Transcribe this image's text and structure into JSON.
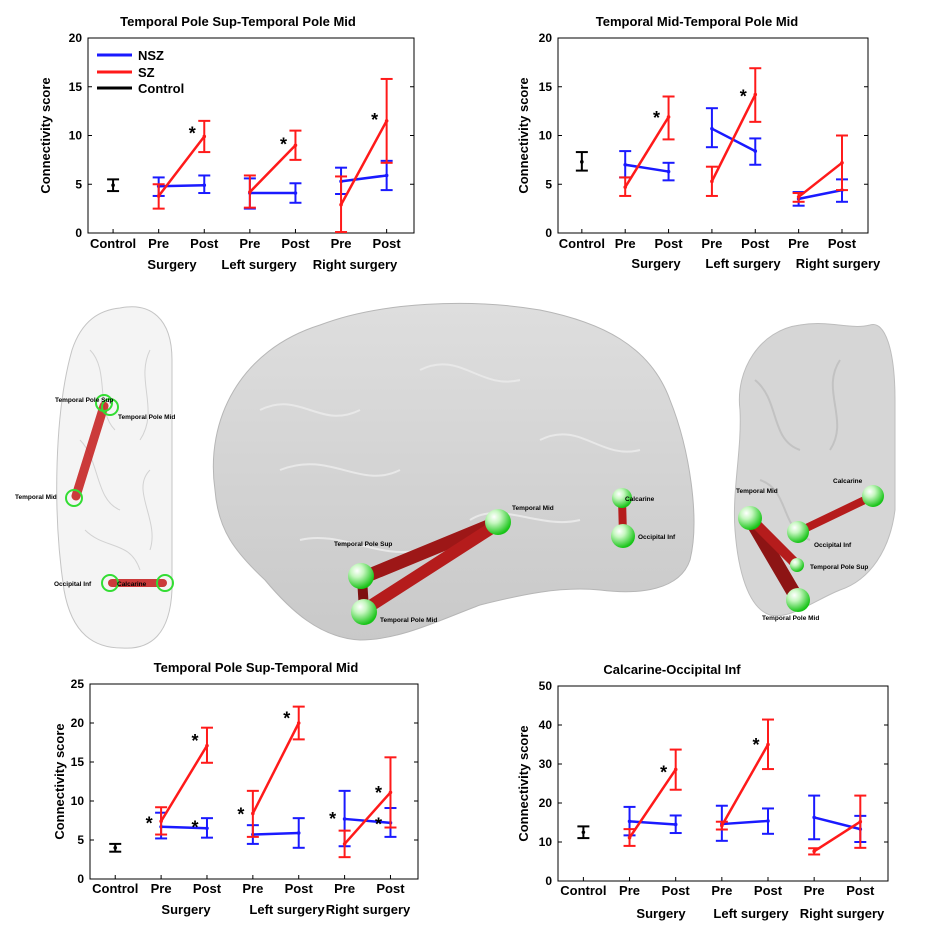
{
  "colors": {
    "nsz": "#1a1aff",
    "sz": "#ff1a1a",
    "control": "#000000",
    "node": "#22dd22",
    "edge": "#b01818"
  },
  "legend": {
    "nsz": "NSZ",
    "sz": "SZ",
    "control": "Control"
  },
  "chart_data": [
    {
      "type": "line",
      "title": "Temporal Pole Sup-Temporal Pole Mid",
      "ylabel": "Connectivity score",
      "ylim": [
        0,
        20
      ],
      "yticks": [
        "0",
        "5",
        "10",
        "15",
        "20"
      ],
      "ticks": [
        "Control",
        "Pre",
        "Post",
        "Pre",
        "Post",
        "Pre",
        "Post"
      ],
      "groups": [
        "Surgery",
        "Left surgery",
        "Right surgery"
      ],
      "control": {
        "mean": 4.9,
        "lo": 4.3,
        "hi": 5.5
      },
      "series": [
        {
          "name": "NSZ",
          "pairs": [
            {
              "pre": 4.8,
              "preLo": 3.8,
              "preHi": 5.7,
              "post": 4.9,
              "postLo": 4.1,
              "postHi": 5.9
            },
            {
              "pre": 4.1,
              "preLo": 2.5,
              "preHi": 5.6,
              "post": 4.1,
              "postLo": 3.1,
              "postHi": 5.1
            },
            {
              "pre": 5.3,
              "preLo": 4.0,
              "preHi": 6.7,
              "post": 5.9,
              "postLo": 4.4,
              "postHi": 7.4
            }
          ]
        },
        {
          "name": "SZ",
          "pairs": [
            {
              "pre": 3.8,
              "preLo": 2.5,
              "preHi": 5.0,
              "post": 9.9,
              "postLo": 8.3,
              "postHi": 11.5
            },
            {
              "pre": 4.2,
              "preLo": 2.6,
              "preHi": 5.9,
              "post": 9.0,
              "postLo": 7.5,
              "postHi": 10.5
            },
            {
              "pre": 2.9,
              "preLo": 0.1,
              "preHi": 5.8,
              "post": 11.5,
              "postLo": 7.2,
              "postHi": 15.8
            }
          ]
        }
      ],
      "stars": [
        {
          "pos": 2,
          "value": 10.2
        },
        {
          "pos": 4,
          "value": 9.1
        },
        {
          "pos": 6,
          "value": 11.6
        }
      ]
    },
    {
      "type": "line",
      "title": "Temporal Mid-Temporal Pole Mid",
      "ylabel": "Connectivity score",
      "ylim": [
        0,
        20
      ],
      "yticks": [
        "0",
        "5",
        "10",
        "15",
        "20"
      ],
      "ticks": [
        "Control",
        "Pre",
        "Post",
        "Pre",
        "Post",
        "Pre",
        "Post"
      ],
      "groups": [
        "Surgery",
        "Left surgery",
        "Right surgery"
      ],
      "control": {
        "mean": 7.3,
        "lo": 6.4,
        "hi": 8.3
      },
      "series": [
        {
          "name": "NSZ",
          "pairs": [
            {
              "pre": 7.0,
              "preLo": 5.7,
              "preHi": 8.4,
              "post": 6.3,
              "postLo": 5.4,
              "postHi": 7.2
            },
            {
              "pre": 10.7,
              "preLo": 8.8,
              "preHi": 12.8,
              "post": 8.4,
              "postLo": 7.0,
              "postHi": 9.7
            },
            {
              "pre": 3.5,
              "preLo": 2.8,
              "preHi": 4.2,
              "post": 4.4,
              "postLo": 3.2,
              "postHi": 5.5
            }
          ]
        },
        {
          "name": "SZ",
          "pairs": [
            {
              "pre": 4.7,
              "preLo": 3.8,
              "preHi": 5.7,
              "post": 11.9,
              "postLo": 9.6,
              "postHi": 14.0
            },
            {
              "pre": 5.3,
              "preLo": 3.8,
              "preHi": 6.8,
              "post": 14.2,
              "postLo": 11.4,
              "postHi": 16.9
            },
            {
              "pre": 3.7,
              "preLo": 3.2,
              "preHi": 4.1,
              "post": 7.2,
              "postLo": 4.4,
              "postHi": 10.0
            }
          ]
        }
      ],
      "stars": [
        {
          "pos": 2,
          "value": 11.8
        },
        {
          "pos": 4,
          "value": 14.0
        }
      ]
    },
    {
      "type": "line",
      "title": "Temporal Pole Sup-Temporal Mid",
      "ylabel": "Connectivity score",
      "ylim": [
        0,
        25
      ],
      "yticks": [
        "0",
        "5",
        "10",
        "15",
        "20",
        "25"
      ],
      "ticks": [
        "Control",
        "Pre",
        "Post",
        "Pre",
        "Post",
        "Pre",
        "Post"
      ],
      "groups": [
        "Surgery",
        "Left surgery",
        "Right surgery"
      ],
      "control": {
        "mean": 4.0,
        "lo": 3.5,
        "hi": 4.5
      },
      "series": [
        {
          "name": "NSZ",
          "pairs": [
            {
              "pre": 6.7,
              "preLo": 5.2,
              "preHi": 8.5,
              "post": 6.5,
              "postLo": 5.3,
              "postHi": 7.8
            },
            {
              "pre": 5.7,
              "preLo": 4.5,
              "preHi": 6.9,
              "post": 5.9,
              "postLo": 4.0,
              "postHi": 7.8
            },
            {
              "pre": 7.7,
              "preLo": 4.2,
              "preHi": 11.3,
              "post": 7.2,
              "postLo": 5.4,
              "postHi": 9.1
            }
          ]
        },
        {
          "name": "SZ",
          "pairs": [
            {
              "pre": 7.4,
              "preLo": 5.7,
              "preHi": 9.2,
              "post": 17.1,
              "postLo": 14.9,
              "postHi": 19.4
            },
            {
              "pre": 8.4,
              "preLo": 5.4,
              "preHi": 11.3,
              "post": 20.0,
              "postLo": 17.9,
              "postHi": 22.1
            },
            {
              "pre": 4.5,
              "preLo": 2.8,
              "preHi": 6.2,
              "post": 11.1,
              "postLo": 6.6,
              "postHi": 15.6
            }
          ]
        }
      ],
      "stars": [
        {
          "pos": 1,
          "value": 7.1
        },
        {
          "pos": 2,
          "value": 17.7
        },
        {
          "pos": 2,
          "value": 6.6
        },
        {
          "pos": 3,
          "value": 8.3
        },
        {
          "pos": 4,
          "value": 20.6
        },
        {
          "pos": 5,
          "value": 7.7
        },
        {
          "pos": 6,
          "value": 11.0
        },
        {
          "pos": 6,
          "value": 7.0
        }
      ]
    },
    {
      "type": "line",
      "title": "Calcarine-Occipital Inf",
      "ylabel": "Connectivity score",
      "ylim": [
        0,
        50
      ],
      "yticks": [
        "0",
        "10",
        "20",
        "30",
        "40",
        "50"
      ],
      "ticks": [
        "Control",
        "Pre",
        "Post",
        "Pre",
        "Post",
        "Pre",
        "Post"
      ],
      "groups": [
        "Surgery",
        "Left surgery",
        "Right surgery"
      ],
      "control": {
        "mean": 12.5,
        "lo": 11.0,
        "hi": 14.0
      },
      "series": [
        {
          "name": "NSZ",
          "pairs": [
            {
              "pre": 15.3,
              "preLo": 11.7,
              "preHi": 19.0,
              "post": 14.5,
              "postLo": 12.3,
              "postHi": 16.8
            },
            {
              "pre": 14.6,
              "preLo": 10.3,
              "preHi": 19.3,
              "post": 15.4,
              "postLo": 12.1,
              "postHi": 18.6
            },
            {
              "pre": 16.3,
              "preLo": 10.7,
              "preHi": 21.9,
              "post": 13.3,
              "postLo": 10.0,
              "postHi": 16.7
            }
          ]
        },
        {
          "name": "SZ",
          "pairs": [
            {
              "pre": 11.1,
              "preLo": 9.0,
              "preHi": 13.3,
              "post": 28.6,
              "postLo": 23.4,
              "postHi": 33.7
            },
            {
              "pre": 14.2,
              "preLo": 13.2,
              "preHi": 15.2,
              "post": 35.0,
              "postLo": 28.7,
              "postHi": 41.4
            },
            {
              "pre": 7.6,
              "preLo": 6.8,
              "preHi": 8.4,
              "post": 15.2,
              "postLo": 8.5,
              "postHi": 21.9
            }
          ]
        }
      ],
      "stars": [
        {
          "pos": 2,
          "value": 27.8
        },
        {
          "pos": 4,
          "value": 34.9
        }
      ]
    }
  ],
  "brain_views": {
    "axial": {
      "labels": [
        "Temporal Pole Sup",
        "Temporal Pole Mid",
        "Temporal Mid",
        "Occipital Inf",
        "Calcarine"
      ]
    },
    "sagittal": {
      "labels": [
        "Calcarine",
        "Occipital Inf",
        "Temporal Mid",
        "Temporal Pole Sup",
        "Temporal Pole Mid"
      ]
    },
    "coronal": {
      "labels": [
        "Calcarine",
        "Temporal Mid",
        "Occipital Inf",
        "Temporal Pole Sup",
        "Temporal Pole Mid"
      ]
    }
  }
}
